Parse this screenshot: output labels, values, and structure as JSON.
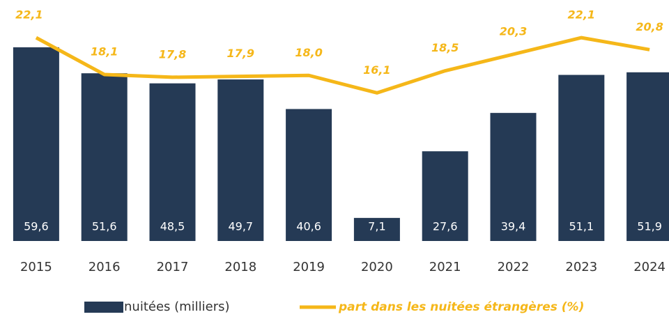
{
  "chart_data": {
    "type": "bar",
    "categories": [
      "2015",
      "2016",
      "2017",
      "2018",
      "2019",
      "2020",
      "2021",
      "2022",
      "2023",
      "2024"
    ],
    "series": [
      {
        "name": "nuitées (milliers)",
        "type": "bar",
        "color": "#253a55",
        "values": [
          59.6,
          51.6,
          48.5,
          49.7,
          40.6,
          7.1,
          27.6,
          39.4,
          51.1,
          51.9
        ],
        "value_labels": [
          "59,6",
          "51,6",
          "48,5",
          "49,7",
          "40,6",
          "7,1",
          "27,6",
          "39,4",
          "51,1",
          "51,9"
        ]
      },
      {
        "name": "part dans les nuitées étrangères (%)",
        "type": "line",
        "axis": "y2",
        "color": "#f5b719",
        "values": [
          22.1,
          18.1,
          17.8,
          17.9,
          18.0,
          16.1,
          18.5,
          20.3,
          22.1,
          20.8
        ],
        "value_labels": [
          "22,1",
          "18,1",
          "17,8",
          "17,9",
          "18,0",
          "16,1",
          "18,5",
          "20,3",
          "22,1",
          "20,8"
        ]
      }
    ],
    "ylim": [
      0,
      60
    ],
    "y2lim": [
      0,
      21.2
    ],
    "legend": "bottom"
  }
}
